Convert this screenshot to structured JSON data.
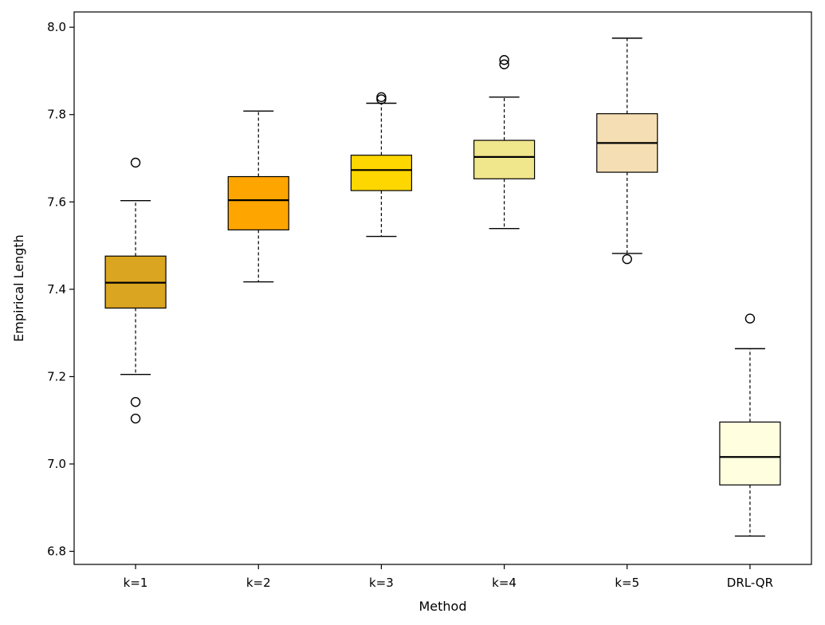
{
  "chart_data": {
    "type": "box",
    "title": "",
    "xlabel": "Method",
    "ylabel": "Empirical Length",
    "ylim": [
      6.77,
      8.035
    ],
    "yticks": [
      "6.8",
      "7.0",
      "7.2",
      "7.4",
      "7.6",
      "7.8",
      "8.0"
    ],
    "grid": false,
    "legend": "none",
    "categories": [
      "k=1",
      "k=2",
      "k=3",
      "k=4",
      "k=5",
      "DRL-QR"
    ],
    "boxes": [
      {
        "category": "k=1",
        "whisker_low": 7.205,
        "q1": 7.357,
        "median": 7.415,
        "q3": 7.476,
        "whisker_high": 7.603,
        "outliers": [
          7.69,
          7.142,
          7.104
        ],
        "color": "#DAA520"
      },
      {
        "category": "k=2",
        "whisker_low": 7.417,
        "q1": 7.536,
        "median": 7.604,
        "q3": 7.658,
        "whisker_high": 7.808,
        "outliers": [],
        "color": "#FFA500"
      },
      {
        "category": "k=3",
        "whisker_low": 7.521,
        "q1": 7.626,
        "median": 7.673,
        "q3": 7.707,
        "whisker_high": 7.826,
        "outliers": [
          7.835,
          7.84
        ],
        "color": "#FFD700"
      },
      {
        "category": "k=4",
        "whisker_low": 7.539,
        "q1": 7.653,
        "median": 7.703,
        "q3": 7.741,
        "whisker_high": 7.84,
        "outliers": [
          7.915,
          7.925
        ],
        "color": "#F0E68C"
      },
      {
        "category": "k=5",
        "whisker_low": 7.482,
        "q1": 7.668,
        "median": 7.735,
        "q3": 7.802,
        "whisker_high": 7.975,
        "outliers": [
          7.469
        ],
        "color": "#F5DEB3"
      },
      {
        "category": "DRL-QR",
        "whisker_low": 6.835,
        "q1": 6.952,
        "median": 7.016,
        "q3": 7.096,
        "whisker_high": 7.264,
        "outliers": [
          7.333
        ],
        "color": "#FFFFE0"
      }
    ]
  }
}
